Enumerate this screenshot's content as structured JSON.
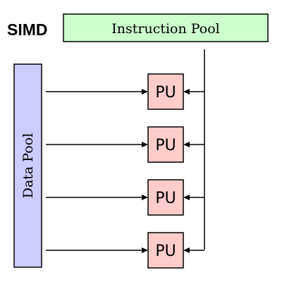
{
  "title": "SIMD",
  "instruction_pool": {
    "label": "Instruction Pool",
    "color": "#ccffcc"
  },
  "data_pool": {
    "label": "Data Pool",
    "color": "#ccccff"
  },
  "processing_units": [
    {
      "label": "PU"
    },
    {
      "label": "PU"
    },
    {
      "label": "PU"
    },
    {
      "label": "PU"
    }
  ],
  "pu_color": "#ffcccc"
}
